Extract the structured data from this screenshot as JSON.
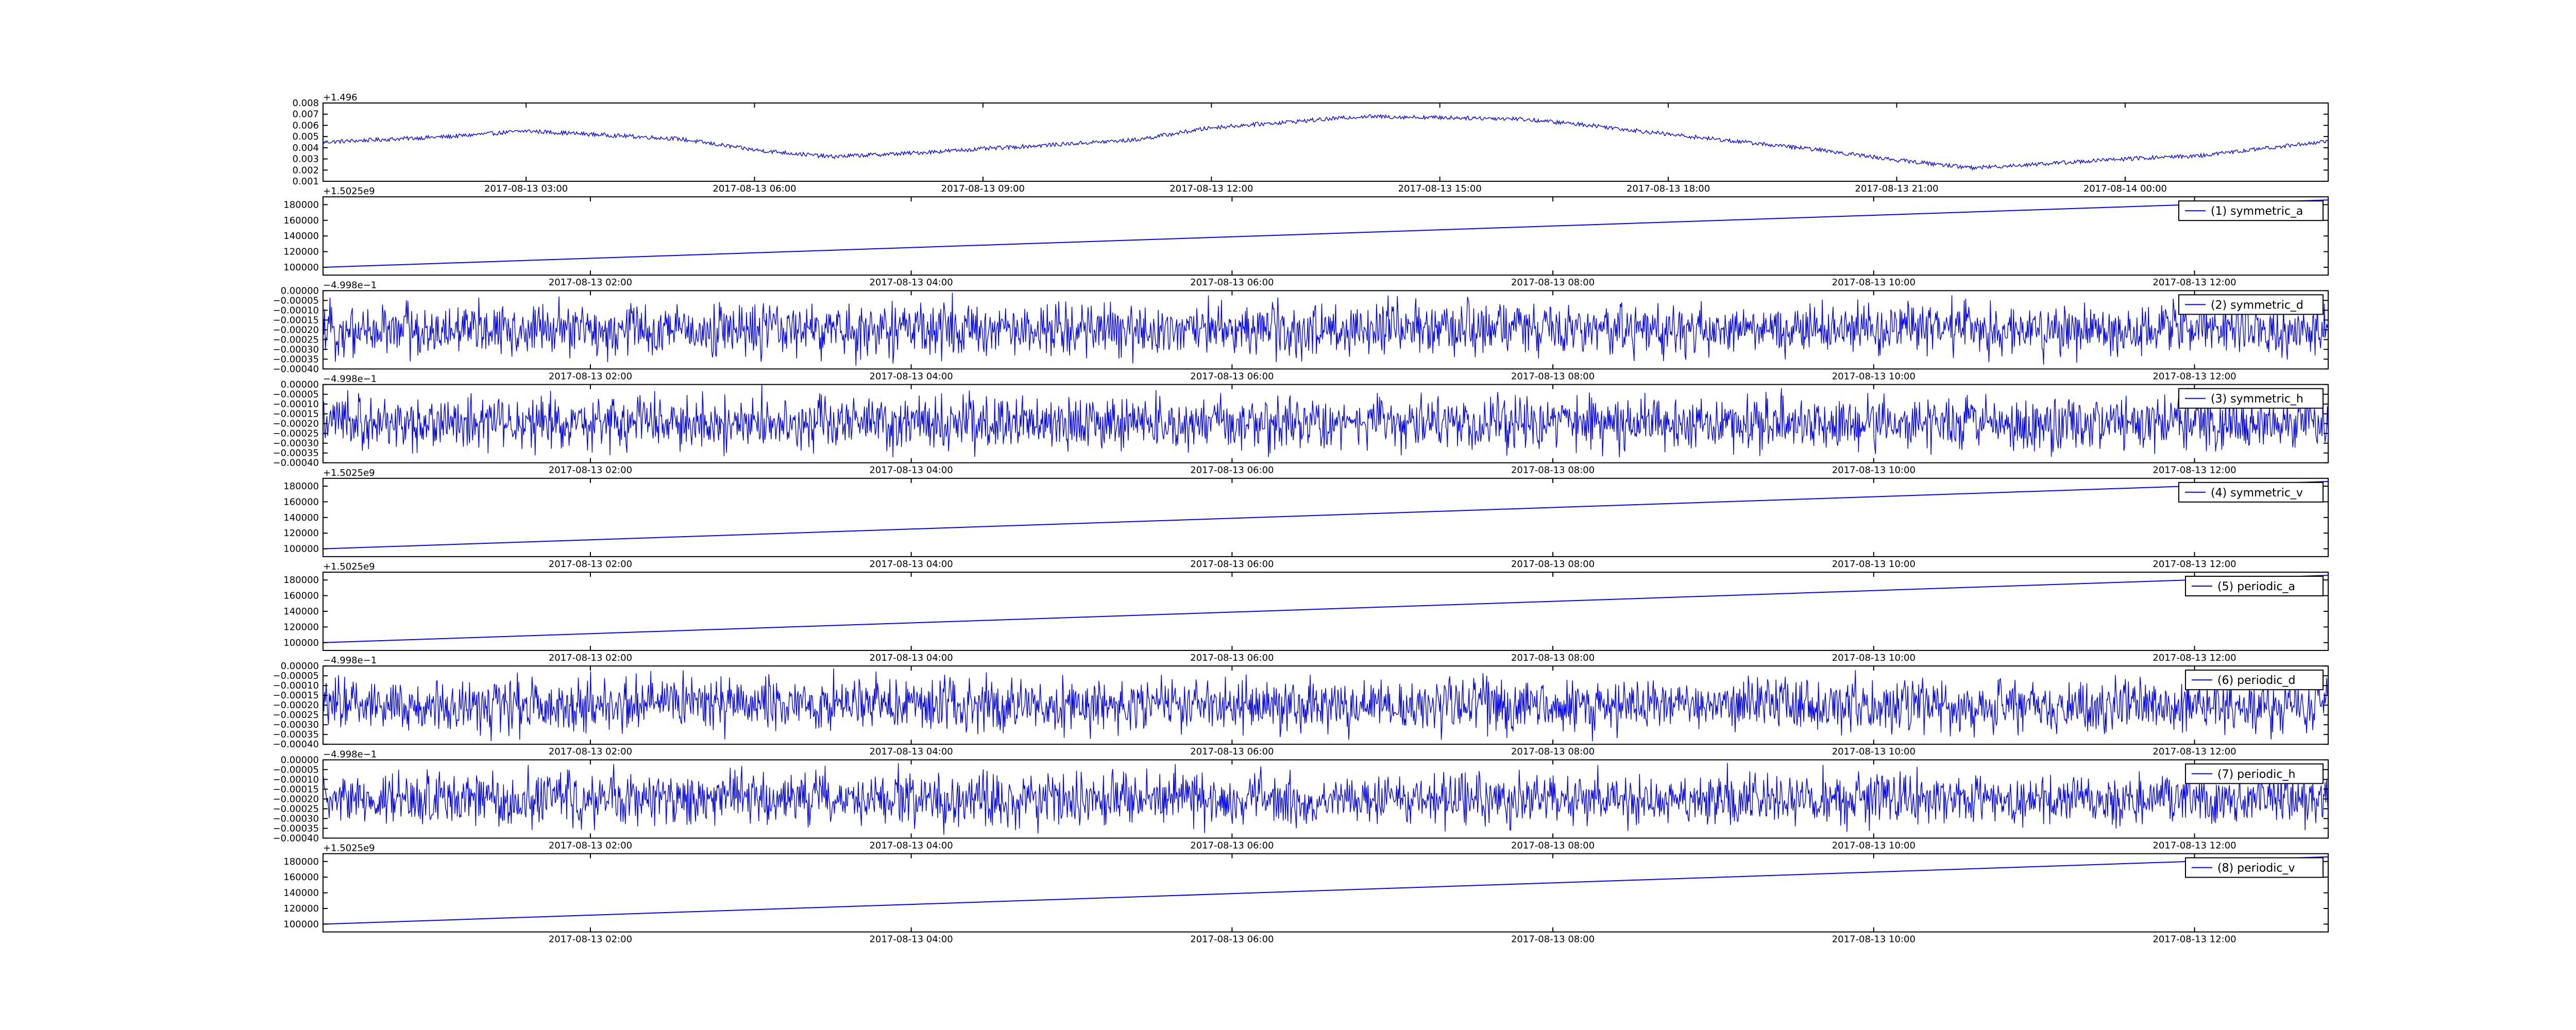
{
  "chart_data": [
    {
      "type": "line",
      "offset_text": "+1.496",
      "legend": null,
      "color": "#0000ff",
      "x_range": [
        "2017-08-13 00:20",
        "2017-08-14 02:40"
      ],
      "x_ticks": [
        "2017-08-13 03:00",
        "2017-08-13 06:00",
        "2017-08-13 09:00",
        "2017-08-13 12:00",
        "2017-08-13 15:00",
        "2017-08-13 18:00",
        "2017-08-13 21:00",
        "2017-08-14 00:00"
      ],
      "ylim": [
        0.001,
        0.008
      ],
      "y_ticks": [
        "0.008",
        "0.007",
        "0.006",
        "0.005",
        "0.004",
        "0.003",
        "0.002",
        "0.001"
      ],
      "series_kind": "noisy",
      "noise": 0.0003,
      "series": {
        "x": [
          "2017-08-13 00:20",
          "2017-08-13 02:00",
          "2017-08-13 03:00",
          "2017-08-13 05:00",
          "2017-08-13 06:00",
          "2017-08-13 07:00",
          "2017-08-13 08:00",
          "2017-08-13 10:00",
          "2017-08-13 11:00",
          "2017-08-13 12:00",
          "2017-08-13 14:00",
          "2017-08-13 16:00",
          "2017-08-13 17:00",
          "2017-08-13 18:00",
          "2017-08-13 19:00",
          "2017-08-13 20:00",
          "2017-08-13 21:00",
          "2017-08-13 22:00",
          "2017-08-13 23:00",
          "2017-08-14 00:00",
          "2017-08-14 01:00",
          "2017-08-14 02:40"
        ],
        "y": [
          0.0045,
          0.005,
          0.0055,
          0.0048,
          0.0038,
          0.0032,
          0.0035,
          0.0043,
          0.0047,
          0.0058,
          0.0068,
          0.0066,
          0.006,
          0.0052,
          0.0045,
          0.0038,
          0.0029,
          0.0022,
          0.0026,
          0.003,
          0.0033,
          0.0046
        ]
      }
    },
    {
      "type": "line",
      "offset_text": "+1.5025e9",
      "legend": "(1) symmetric_a",
      "color": "#0000ff",
      "x_range": [
        "2017-08-13 00:20",
        "2017-08-13 12:50"
      ],
      "x_ticks": [
        "2017-08-13 02:00",
        "2017-08-13 04:00",
        "2017-08-13 06:00",
        "2017-08-13 08:00",
        "2017-08-13 10:00",
        "2017-08-13 12:00"
      ],
      "ylim": [
        90000,
        190000
      ],
      "y_ticks": [
        "180000",
        "160000",
        "140000",
        "120000",
        "100000"
      ],
      "series_kind": "linear",
      "noise": 0,
      "series": {
        "x": [
          "2017-08-13 00:20",
          "2017-08-13 12:50"
        ],
        "y": [
          100000,
          186000
        ]
      }
    },
    {
      "type": "line",
      "offset_text": "−4.998e−1",
      "legend": "(2) symmetric_d",
      "color": "#0000ff",
      "x_range": [
        "2017-08-13 00:20",
        "2017-08-13 12:50"
      ],
      "x_ticks": [
        "2017-08-13 02:00",
        "2017-08-13 04:00",
        "2017-08-13 06:00",
        "2017-08-13 08:00",
        "2017-08-13 10:00",
        "2017-08-13 12:00"
      ],
      "ylim": [
        -0.0004,
        0.0
      ],
      "y_ticks": [
        "0.00000",
        "−0.00005",
        "−0.00010",
        "−0.00015",
        "−0.00020",
        "−0.00025",
        "−0.00030",
        "−0.00035",
        "−0.00040"
      ],
      "series_kind": "band",
      "noise": 0.00011,
      "series": {
        "x": [
          "2017-08-13 00:20",
          "2017-08-13 12:50"
        ],
        "y": [
          -0.0002,
          -0.0002
        ]
      }
    },
    {
      "type": "line",
      "offset_text": "−4.998e−1",
      "legend": "(3) symmetric_h",
      "color": "#0000ff",
      "x_range": [
        "2017-08-13 00:20",
        "2017-08-13 12:50"
      ],
      "x_ticks": [
        "2017-08-13 02:00",
        "2017-08-13 04:00",
        "2017-08-13 06:00",
        "2017-08-13 08:00",
        "2017-08-13 10:00",
        "2017-08-13 12:00"
      ],
      "ylim": [
        -0.0004,
        0.0
      ],
      "y_ticks": [
        "0.00000",
        "−0.00005",
        "−0.00010",
        "−0.00015",
        "−0.00020",
        "−0.00025",
        "−0.00030",
        "−0.00035",
        "−0.00040"
      ],
      "series_kind": "band",
      "noise": 0.00011,
      "series": {
        "x": [
          "2017-08-13 00:20",
          "2017-08-13 12:50"
        ],
        "y": [
          -0.0002,
          -0.0002
        ]
      }
    },
    {
      "type": "line",
      "offset_text": "+1.5025e9",
      "legend": "(4) symmetric_v",
      "color": "#0000ff",
      "x_range": [
        "2017-08-13 00:20",
        "2017-08-13 12:50"
      ],
      "x_ticks": [
        "2017-08-13 02:00",
        "2017-08-13 04:00",
        "2017-08-13 06:00",
        "2017-08-13 08:00",
        "2017-08-13 10:00",
        "2017-08-13 12:00"
      ],
      "ylim": [
        90000,
        190000
      ],
      "y_ticks": [
        "180000",
        "160000",
        "140000",
        "120000",
        "100000"
      ],
      "series_kind": "linear",
      "noise": 0,
      "series": {
        "x": [
          "2017-08-13 00:20",
          "2017-08-13 12:50"
        ],
        "y": [
          100000,
          186000
        ]
      }
    },
    {
      "type": "line",
      "offset_text": "+1.5025e9",
      "legend": "(5) periodic_a",
      "color": "#0000ff",
      "x_range": [
        "2017-08-13 00:20",
        "2017-08-13 12:50"
      ],
      "x_ticks": [
        "2017-08-13 02:00",
        "2017-08-13 04:00",
        "2017-08-13 06:00",
        "2017-08-13 08:00",
        "2017-08-13 10:00",
        "2017-08-13 12:00"
      ],
      "ylim": [
        90000,
        190000
      ],
      "y_ticks": [
        "180000",
        "160000",
        "140000",
        "120000",
        "100000"
      ],
      "series_kind": "linear",
      "noise": 0,
      "series": {
        "x": [
          "2017-08-13 00:20",
          "2017-08-13 12:50"
        ],
        "y": [
          100000,
          186000
        ]
      }
    },
    {
      "type": "line",
      "offset_text": "−4.998e−1",
      "legend": "(6) periodic_d",
      "color": "#0000ff",
      "x_range": [
        "2017-08-13 00:20",
        "2017-08-13 12:50"
      ],
      "x_ticks": [
        "2017-08-13 02:00",
        "2017-08-13 04:00",
        "2017-08-13 06:00",
        "2017-08-13 08:00",
        "2017-08-13 10:00",
        "2017-08-13 12:00"
      ],
      "ylim": [
        -0.0004,
        0.0
      ],
      "y_ticks": [
        "0.00000",
        "−0.00005",
        "−0.00010",
        "−0.00015",
        "−0.00020",
        "−0.00025",
        "−0.00030",
        "−0.00035",
        "−0.00040"
      ],
      "series_kind": "band",
      "noise": 0.00011,
      "series": {
        "x": [
          "2017-08-13 00:20",
          "2017-08-13 12:50"
        ],
        "y": [
          -0.0002,
          -0.0002
        ]
      }
    },
    {
      "type": "line",
      "offset_text": "−4.998e−1",
      "legend": "(7) periodic_h",
      "color": "#0000ff",
      "x_range": [
        "2017-08-13 00:20",
        "2017-08-13 12:50"
      ],
      "x_ticks": [
        "2017-08-13 02:00",
        "2017-08-13 04:00",
        "2017-08-13 06:00",
        "2017-08-13 08:00",
        "2017-08-13 10:00",
        "2017-08-13 12:00"
      ],
      "ylim": [
        -0.0004,
        0.0
      ],
      "y_ticks": [
        "0.00000",
        "−0.00005",
        "−0.00010",
        "−0.00015",
        "−0.00020",
        "−0.00025",
        "−0.00030",
        "−0.00035",
        "−0.00040"
      ],
      "series_kind": "band",
      "noise": 0.00011,
      "series": {
        "x": [
          "2017-08-13 00:20",
          "2017-08-13 12:50"
        ],
        "y": [
          -0.0002,
          -0.0002
        ]
      }
    },
    {
      "type": "line",
      "offset_text": "+1.5025e9",
      "legend": "(8) periodic_v",
      "color": "#0000ff",
      "x_range": [
        "2017-08-13 00:20",
        "2017-08-13 12:50"
      ],
      "x_ticks": [
        "2017-08-13 02:00",
        "2017-08-13 04:00",
        "2017-08-13 06:00",
        "2017-08-13 08:00",
        "2017-08-13 10:00",
        "2017-08-13 12:00"
      ],
      "ylim": [
        90000,
        190000
      ],
      "y_ticks": [
        "180000",
        "160000",
        "140000",
        "120000",
        "100000"
      ],
      "series_kind": "linear",
      "noise": 0,
      "series": {
        "x": [
          "2017-08-13 00:20",
          "2017-08-13 12:50"
        ],
        "y": [
          100000,
          186000
        ]
      }
    }
  ]
}
